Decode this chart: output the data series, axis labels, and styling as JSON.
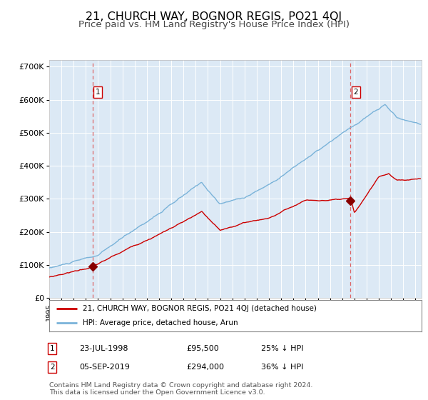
{
  "title": "21, CHURCH WAY, BOGNOR REGIS, PO21 4QJ",
  "subtitle": "Price paid vs. HM Land Registry's House Price Index (HPI)",
  "title_fontsize": 11.5,
  "subtitle_fontsize": 9.5,
  "background_color": "#FFFFFF",
  "plot_bg_color": "#dce9f5",
  "grid_color": "#FFFFFF",
  "sale1_date": 1998.55,
  "sale1_price": 95500,
  "sale2_date": 2019.68,
  "sale2_price": 294000,
  "hpi_line_color": "#7ab3d9",
  "price_line_color": "#cc0000",
  "sale_marker_color": "#880000",
  "vline_color": "#dd6666",
  "ylim_min": 0,
  "ylim_max": 720000,
  "xlim_min": 1995.0,
  "xlim_max": 2025.5,
  "legend_label1": "21, CHURCH WAY, BOGNOR REGIS, PO21 4QJ (detached house)",
  "legend_label2": "HPI: Average price, detached house, Arun",
  "table_row1": [
    "1",
    "23-JUL-1998",
    "£95,500",
    "25% ↓ HPI"
  ],
  "table_row2": [
    "2",
    "05-SEP-2019",
    "£294,000",
    "36% ↓ HPI"
  ],
  "footer": "Contains HM Land Registry data © Crown copyright and database right 2024.\nThis data is licensed under the Open Government Licence v3.0."
}
